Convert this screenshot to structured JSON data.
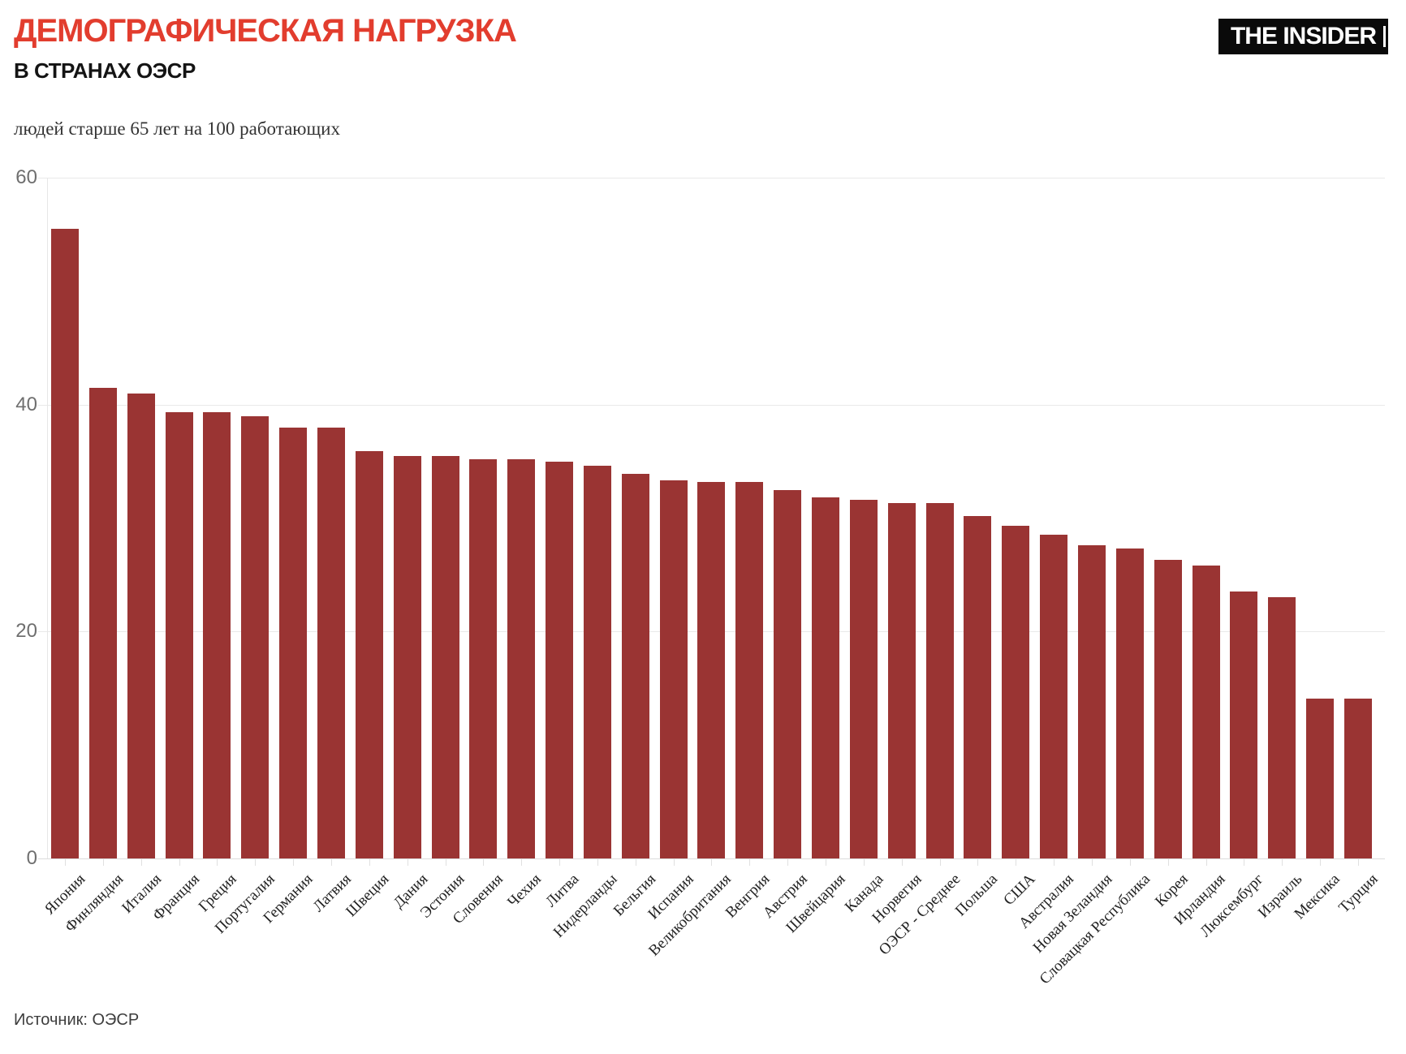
{
  "header": {
    "title": "ДЕМОГРАФИЧЕСКАЯ НАГРУЗКА",
    "subtitle": "В СТРАНАХ ОЭСР",
    "logo_text": "THE INSIDER"
  },
  "footer": {
    "source": "Источник: ОЭСР"
  },
  "colors": {
    "title_red": "#e23d2e",
    "bar": "#9a3433",
    "logo_bg": "#0a0a0a",
    "grid": "#e9e9e9",
    "axis": "#dcdcdc",
    "ytick_text": "#6f6f6f",
    "xlabel_text": "#222222"
  },
  "chart_data": {
    "type": "bar",
    "title": "ДЕМОГРАФИЧЕСКАЯ НАГРУЗКА В СТРАНАХ ОЭСР",
    "ylabel": "людей старше 65 лет на 100 работающих",
    "xlabel": "",
    "ylim": [
      0,
      60
    ],
    "yticks": [
      0,
      20,
      40,
      60
    ],
    "grid": "horizontal",
    "legend": "none",
    "bar_color": "#9a3433",
    "categories": [
      "Япония",
      "Финляндия",
      "Италия",
      "Франция",
      "Греция",
      "Португалия",
      "Германия",
      "Латвия",
      "Швеция",
      "Дания",
      "Эстония",
      "Словения",
      "Чехия",
      "Литва",
      "Нидерланды",
      "Бельгия",
      "Испания",
      "Великобритания",
      "Венгрия",
      "Австрия",
      "Швейцария",
      "Канада",
      "Норвегия",
      "ОЭСР - Среднее",
      "Польша",
      "США",
      "Австралия",
      "Новая Зеландия",
      "Словацкая Республика",
      "Корея",
      "Ирландия",
      "Люксембург",
      "Израиль",
      "Мексика",
      "Турция"
    ],
    "values": [
      55.5,
      41.5,
      41.0,
      39.3,
      39.3,
      39.0,
      38.0,
      38.0,
      35.9,
      35.5,
      35.5,
      35.2,
      35.2,
      35.0,
      34.6,
      33.9,
      33.3,
      33.2,
      33.2,
      32.5,
      31.8,
      31.6,
      31.3,
      31.3,
      30.2,
      29.3,
      28.5,
      27.6,
      27.3,
      26.3,
      25.8,
      23.5,
      23.0,
      14.1,
      14.1
    ]
  }
}
